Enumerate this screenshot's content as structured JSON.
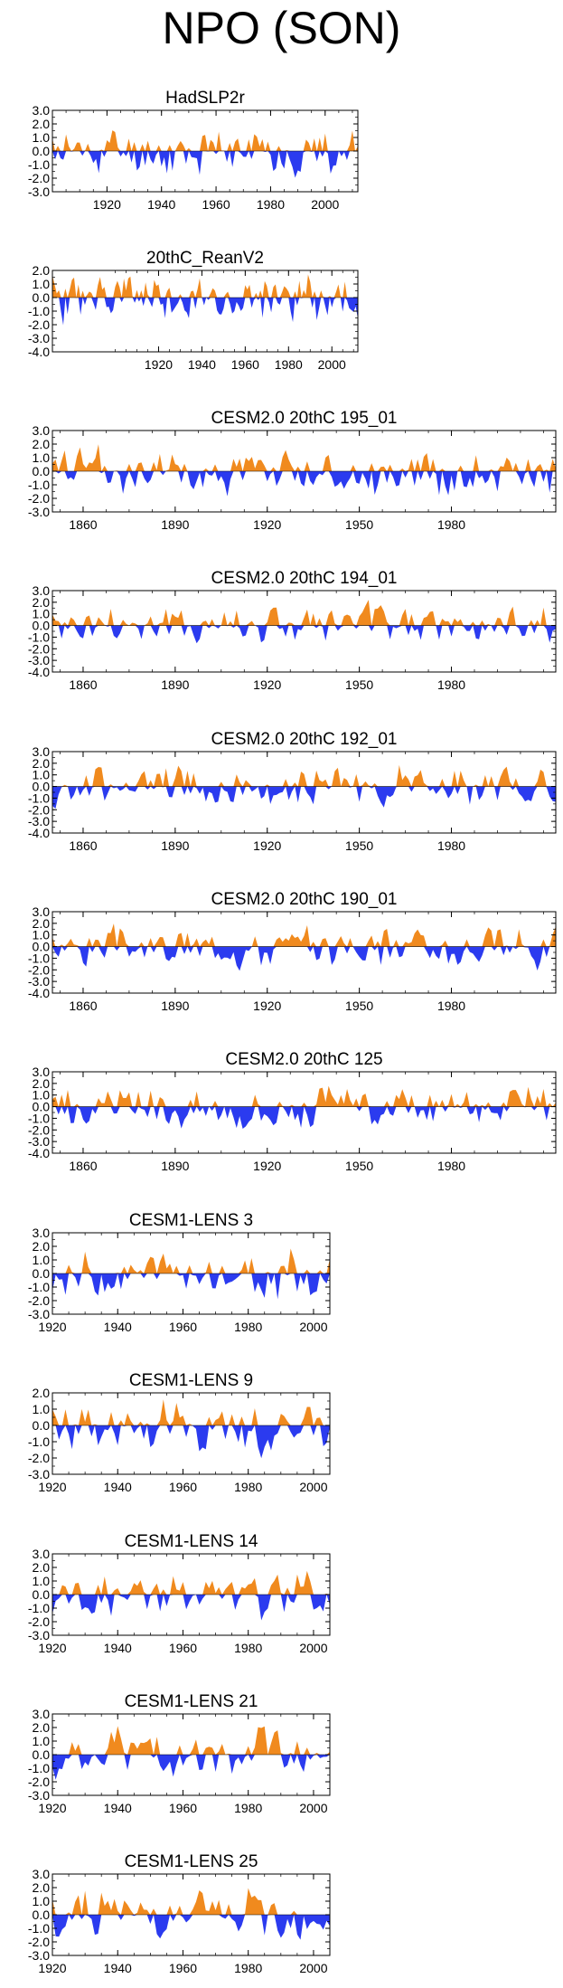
{
  "page": {
    "title": "NPO (SON)"
  },
  "colors": {
    "positive": "#f08a1e",
    "negative": "#2b3bef"
  },
  "chart_data": [
    {
      "type": "area",
      "title": "HadSLP2r",
      "x_start": 1900,
      "x_end": 2012,
      "ylim": [
        -3.0,
        3.0
      ],
      "yticks": [
        "3.0",
        "2.0",
        "1.0",
        "0.0",
        "-1.0",
        "-2.0",
        "-3.0"
      ],
      "xticks": [
        1920,
        1940,
        1960,
        1980,
        2000
      ],
      "seed": 11
    },
    {
      "type": "area",
      "title": "20thC_ReanV2",
      "x_start": 1871,
      "x_end": 2012,
      "ylim": [
        -4.0,
        2.0
      ],
      "yticks": [
        "2.0",
        "1.0",
        "0.0",
        "-1.0",
        "-2.0",
        "-3.0",
        "-4.0"
      ],
      "xticks": [
        1920,
        1940,
        1960,
        1980,
        2000
      ],
      "seed": 23
    },
    {
      "type": "area",
      "title": "CESM2.0 20thC 195_01",
      "x_start": 1850,
      "x_end": 2014,
      "ylim": [
        -3.0,
        3.0
      ],
      "yticks": [
        "3.0",
        "2.0",
        "1.0",
        "0.0",
        "-1.0",
        "-2.0",
        "-3.0"
      ],
      "xticks": [
        1860,
        1890,
        1920,
        1950,
        1980
      ],
      "seed": 37
    },
    {
      "type": "area",
      "title": "CESM2.0 20thC 194_01",
      "x_start": 1850,
      "x_end": 2014,
      "ylim": [
        -4.0,
        3.0
      ],
      "yticks": [
        "3.0",
        "2.0",
        "1.0",
        "0.0",
        "-1.0",
        "-2.0",
        "-3.0",
        "-4.0"
      ],
      "xticks": [
        1860,
        1890,
        1920,
        1950,
        1980
      ],
      "seed": 41
    },
    {
      "type": "area",
      "title": "CESM2.0 20thC 192_01",
      "x_start": 1850,
      "x_end": 2014,
      "ylim": [
        -4.0,
        3.0
      ],
      "yticks": [
        "3.0",
        "2.0",
        "1.0",
        "0.0",
        "-1.0",
        "-2.0",
        "-3.0",
        "-4.0"
      ],
      "xticks": [
        1860,
        1890,
        1920,
        1950,
        1980
      ],
      "seed": 53
    },
    {
      "type": "area",
      "title": "CESM2.0 20thC 190_01",
      "x_start": 1850,
      "x_end": 2014,
      "ylim": [
        -4.0,
        3.0
      ],
      "yticks": [
        "3.0",
        "2.0",
        "1.0",
        "0.0",
        "-1.0",
        "-2.0",
        "-3.0",
        "-4.0"
      ],
      "xticks": [
        1860,
        1890,
        1920,
        1950,
        1980
      ],
      "seed": 67
    },
    {
      "type": "area",
      "title": "CESM2.0 20thC 125",
      "x_start": 1850,
      "x_end": 2014,
      "ylim": [
        -4.0,
        3.0
      ],
      "yticks": [
        "3.0",
        "2.0",
        "1.0",
        "0.0",
        "-1.0",
        "-2.0",
        "-3.0",
        "-4.0"
      ],
      "xticks": [
        1860,
        1890,
        1920,
        1950,
        1980
      ],
      "seed": 79
    },
    {
      "type": "area",
      "title": "CESM1-LENS 3",
      "x_start": 1920,
      "x_end": 2005,
      "ylim": [
        -3.0,
        3.0
      ],
      "yticks": [
        "3.0",
        "2.0",
        "1.0",
        "0.0",
        "-1.0",
        "-2.0",
        "-3.0"
      ],
      "xticks": [
        1920,
        1940,
        1960,
        1980,
        2000
      ],
      "seed": 83
    },
    {
      "type": "area",
      "title": "CESM1-LENS 9",
      "x_start": 1920,
      "x_end": 2005,
      "ylim": [
        -3.0,
        2.0
      ],
      "yticks": [
        "2.0",
        "1.0",
        "0.0",
        "-1.0",
        "-2.0",
        "-3.0"
      ],
      "xticks": [
        1920,
        1940,
        1960,
        1980,
        2000
      ],
      "seed": 97
    },
    {
      "type": "area",
      "title": "CESM1-LENS 14",
      "x_start": 1920,
      "x_end": 2005,
      "ylim": [
        -3.0,
        3.0
      ],
      "yticks": [
        "3.0",
        "2.0",
        "1.0",
        "0.0",
        "-1.0",
        "-2.0",
        "-3.0"
      ],
      "xticks": [
        1920,
        1940,
        1960,
        1980,
        2000
      ],
      "seed": 101
    },
    {
      "type": "area",
      "title": "CESM1-LENS 21",
      "x_start": 1920,
      "x_end": 2005,
      "ylim": [
        -3.0,
        3.0
      ],
      "yticks": [
        "3.0",
        "2.0",
        "1.0",
        "0.0",
        "-1.0",
        "-2.0",
        "-3.0"
      ],
      "xticks": [
        1920,
        1940,
        1960,
        1980,
        2000
      ],
      "seed": 113
    },
    {
      "type": "area",
      "title": "CESM1-LENS 25",
      "x_start": 1920,
      "x_end": 2005,
      "ylim": [
        -3.0,
        3.0
      ],
      "yticks": [
        "3.0",
        "2.0",
        "1.0",
        "0.0",
        "-1.0",
        "-2.0",
        "-3.0"
      ],
      "xticks": [
        1920,
        1940,
        1960,
        1980,
        2000
      ],
      "seed": 127
    }
  ]
}
